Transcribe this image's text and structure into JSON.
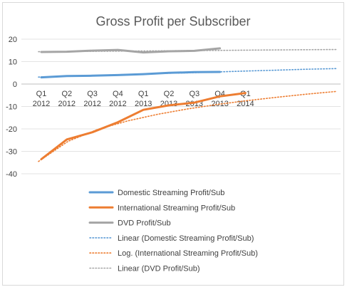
{
  "chart_data": {
    "type": "line",
    "title": "Gross Profit per Subscriber",
    "categories": [
      [
        "Q1",
        "2012"
      ],
      [
        "Q2",
        "2012"
      ],
      [
        "Q3",
        "2012"
      ],
      [
        "Q4",
        "2012"
      ],
      [
        "Q1",
        "2013"
      ],
      [
        "Q2",
        "2013"
      ],
      [
        "Q3",
        "2013"
      ],
      [
        "Q4",
        "2013"
      ],
      [
        "Q1",
        "2014"
      ]
    ],
    "ylim": [
      -40,
      20
    ],
    "yticks": [
      -40,
      -30,
      -20,
      -10,
      0,
      10,
      20
    ],
    "grid": true,
    "legend_position": "bottom",
    "series": [
      {
        "name": "Domestic Streaming Profit/Sub",
        "color": "#5B9BD5",
        "values": [
          3.0,
          3.6,
          3.7,
          4.0,
          4.4,
          5.0,
          5.3,
          5.4,
          null
        ]
      },
      {
        "name": "International Streaming Profit/Sub",
        "color": "#ED7D31",
        "values": [
          -33.5,
          -24.7,
          -21.5,
          -17.0,
          -11.5,
          -9.5,
          -8.3,
          -5.5,
          -4.0
        ]
      },
      {
        "name": "DVD Profit/Sub",
        "color": "#A5A5A5",
        "values": [
          14.3,
          14.4,
          14.9,
          15.2,
          14.1,
          14.6,
          14.8,
          15.9,
          null
        ]
      }
    ],
    "trendlines": [
      {
        "name": "Linear (Domestic Streaming Profit/Sub)",
        "color": "#5B9BD5",
        "kind": "linear",
        "values": [
          3.1,
          3.5,
          3.9,
          4.3,
          4.7,
          5.0,
          5.4,
          5.8,
          6.2,
          6.6,
          6.9
        ]
      },
      {
        "name": "Log. (International Streaming Profit/Sub)",
        "color": "#ED7D31",
        "kind": "log",
        "values": [
          -34.5,
          -25.5,
          -20.2,
          -16.4,
          -13.5,
          -11.1,
          -9.1,
          -7.4,
          -5.9,
          -4.5,
          -3.3
        ]
      },
      {
        "name": "Linear (DVD Profit/Sub)",
        "color": "#A5A5A5",
        "kind": "linear",
        "values": [
          14.4,
          14.5,
          14.6,
          14.7,
          14.8,
          14.9,
          15.0,
          15.1,
          15.2,
          15.3,
          15.4
        ]
      }
    ]
  }
}
